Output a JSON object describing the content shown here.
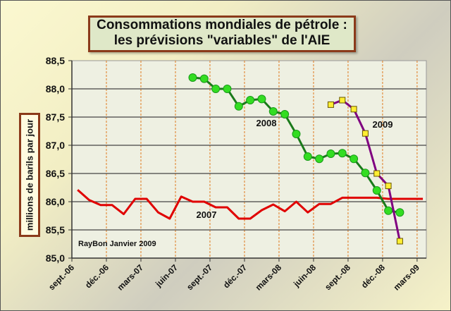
{
  "chart_data": {
    "type": "line",
    "title": [
      "Consommations mondiales de pétrole :",
      "les prévisions \"variables\" de l'AIE"
    ],
    "ylabel": "millions de barils par jour",
    "xlabel": "",
    "ylim": [
      85.0,
      88.5
    ],
    "yticks": [
      85.0,
      85.5,
      86.0,
      86.5,
      87.0,
      87.5,
      88.0,
      88.5
    ],
    "ytick_labels": [
      "85,0",
      "85,5",
      "86,0",
      "86,5",
      "87,0",
      "87,5",
      "88,0",
      "88,5"
    ],
    "x_unit": "months since sept-06",
    "xlim": [
      0,
      31
    ],
    "xtick_labels": [
      "sept.-06",
      "déc.-06",
      "mars-07",
      "juin-07",
      "sept.-07",
      "déc.-07",
      "mars-08",
      "juin-08",
      "sept.-08",
      "déc.-08",
      "mars-09"
    ],
    "grid": "horizontal solid, vertical dashed",
    "series": [
      {
        "name": "2007",
        "color": "#e00000",
        "marker": "none",
        "x_start": 0.5,
        "values": [
          86.21,
          86.03,
          85.94,
          85.94,
          85.78,
          86.05,
          86.05,
          85.81,
          85.7,
          86.09,
          86.0,
          86.0,
          85.9,
          85.9,
          85.7,
          85.7,
          85.85,
          85.95,
          85.83,
          86.0,
          85.81,
          85.96,
          85.96,
          86.07,
          86.07,
          86.07,
          86.07,
          86.05,
          86.05,
          86.05,
          86.05
        ]
      },
      {
        "name": "2008",
        "color": "#1a7a1a",
        "marker_color": "#33dd22",
        "marker": "circle",
        "x_start": 10.5,
        "values": [
          88.2,
          88.18,
          88.0,
          88.0,
          87.69,
          87.8,
          87.82,
          87.6,
          87.55,
          87.2,
          86.8,
          86.76,
          86.85,
          86.86,
          86.76,
          86.51,
          86.2,
          85.84,
          85.81
        ]
      },
      {
        "name": "2009",
        "color": "#800080",
        "marker_color": "#ffee33",
        "marker": "square",
        "x_start": 22.5,
        "values": [
          87.72,
          87.8,
          87.64,
          87.21,
          86.5,
          86.28,
          85.3
        ]
      }
    ],
    "annotations": {
      "credit": "RayBon Janvier 2009"
    }
  }
}
